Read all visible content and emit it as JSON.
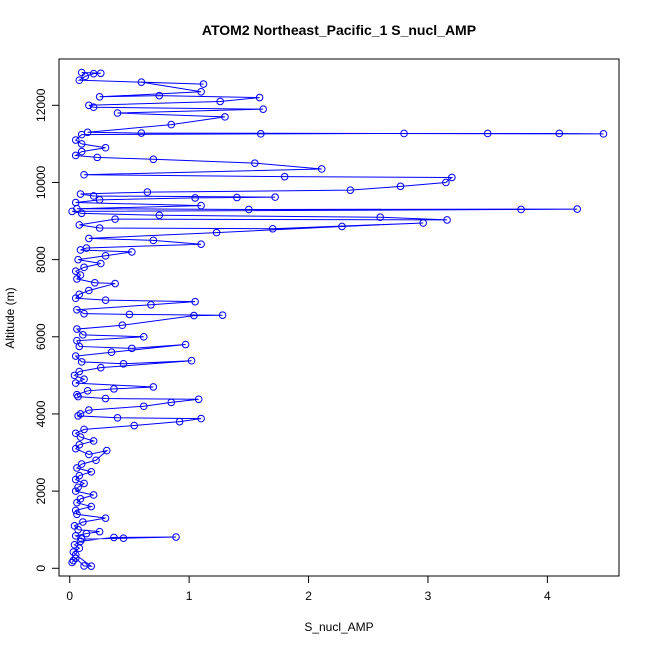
{
  "chart_data": {
    "type": "scatter",
    "title": "ATOM2 Northeast_Pacific_1 S_nucl_AMP",
    "xlabel": "S_nucl_AMP",
    "ylabel": "Altitude (m)",
    "xlim": [
      -0.09,
      4.6
    ],
    "ylim": [
      -200,
      13200
    ],
    "x_ticks": [
      0,
      1,
      2,
      3,
      4
    ],
    "y_ticks": [
      0,
      2000,
      4000,
      6000,
      8000,
      10000,
      12000
    ],
    "grid": false,
    "legend": "none",
    "colors": {
      "series": "#0000ff",
      "axis": "#000000",
      "background": "#ffffff"
    },
    "series": [
      {
        "marker": "open-circle",
        "connected": true,
        "points": [
          [
            0.02,
            150
          ],
          [
            0.03,
            200
          ],
          [
            0.05,
            260
          ],
          [
            0.12,
            60
          ],
          [
            0.18,
            55
          ],
          [
            0.05,
            350
          ],
          [
            0.03,
            420
          ],
          [
            0.08,
            520
          ],
          [
            0.04,
            610
          ],
          [
            0.09,
            700
          ],
          [
            0.37,
            800
          ],
          [
            0.89,
            810
          ],
          [
            0.45,
            780
          ],
          [
            0.1,
            760
          ],
          [
            0.05,
            840
          ],
          [
            0.14,
            900
          ],
          [
            0.25,
            950
          ],
          [
            0.07,
            1000
          ],
          [
            0.04,
            1100
          ],
          [
            0.11,
            1200
          ],
          [
            0.3,
            1300
          ],
          [
            0.06,
            1400
          ],
          [
            0.05,
            1500
          ],
          [
            0.18,
            1600
          ],
          [
            0.06,
            1700
          ],
          [
            0.09,
            1800
          ],
          [
            0.2,
            1900
          ],
          [
            0.05,
            2000
          ],
          [
            0.07,
            2100
          ],
          [
            0.12,
            2200
          ],
          [
            0.05,
            2300
          ],
          [
            0.08,
            2400
          ],
          [
            0.18,
            2500
          ],
          [
            0.06,
            2600
          ],
          [
            0.1,
            2700
          ],
          [
            0.22,
            2800
          ],
          [
            0.31,
            3050
          ],
          [
            0.16,
            2950
          ],
          [
            0.05,
            3100
          ],
          [
            0.08,
            3200
          ],
          [
            0.2,
            3300
          ],
          [
            0.09,
            3400
          ],
          [
            0.05,
            3500
          ],
          [
            0.12,
            3600
          ],
          [
            0.54,
            3700
          ],
          [
            0.92,
            3800
          ],
          [
            1.1,
            3880
          ],
          [
            0.4,
            3900
          ],
          [
            0.07,
            3950
          ],
          [
            0.09,
            4000
          ],
          [
            0.16,
            4100
          ],
          [
            0.62,
            4200
          ],
          [
            0.85,
            4300
          ],
          [
            1.08,
            4380
          ],
          [
            0.3,
            4400
          ],
          [
            0.07,
            4450
          ],
          [
            0.06,
            4500
          ],
          [
            0.15,
            4600
          ],
          [
            0.37,
            4650
          ],
          [
            0.7,
            4700
          ],
          [
            0.05,
            4800
          ],
          [
            0.12,
            4900
          ],
          [
            0.04,
            5000
          ],
          [
            0.08,
            5100
          ],
          [
            0.26,
            5200
          ],
          [
            1.02,
            5380
          ],
          [
            0.45,
            5300
          ],
          [
            0.1,
            5350
          ],
          [
            0.05,
            5500
          ],
          [
            0.35,
            5600
          ],
          [
            0.97,
            5800
          ],
          [
            0.52,
            5700
          ],
          [
            0.08,
            5750
          ],
          [
            0.06,
            5900
          ],
          [
            0.62,
            6000
          ],
          [
            0.11,
            6050
          ],
          [
            0.06,
            6200
          ],
          [
            0.44,
            6300
          ],
          [
            1.04,
            6550
          ],
          [
            1.28,
            6560
          ],
          [
            0.5,
            6580
          ],
          [
            0.12,
            6600
          ],
          [
            0.06,
            6700
          ],
          [
            0.68,
            6830
          ],
          [
            1.05,
            6910
          ],
          [
            0.3,
            6950
          ],
          [
            0.05,
            7000
          ],
          [
            0.08,
            7100
          ],
          [
            0.16,
            7200
          ],
          [
            0.38,
            7380
          ],
          [
            0.21,
            7400
          ],
          [
            0.06,
            7500
          ],
          [
            0.09,
            7600
          ],
          [
            0.05,
            7700
          ],
          [
            0.12,
            7800
          ],
          [
            0.26,
            7900
          ],
          [
            0.07,
            8000
          ],
          [
            0.3,
            8100
          ],
          [
            0.52,
            8200
          ],
          [
            0.09,
            8250
          ],
          [
            0.14,
            8300
          ],
          [
            1.1,
            8400
          ],
          [
            0.7,
            8500
          ],
          [
            0.16,
            8550
          ],
          [
            1.23,
            8700
          ],
          [
            2.28,
            8860
          ],
          [
            2.96,
            8950
          ],
          [
            1.7,
            8800
          ],
          [
            0.25,
            8820
          ],
          [
            0.08,
            8900
          ],
          [
            0.38,
            9050
          ],
          [
            3.16,
            9030
          ],
          [
            2.6,
            9100
          ],
          [
            0.75,
            9150
          ],
          [
            0.1,
            9200
          ],
          [
            0.02,
            9250
          ],
          [
            3.78,
            9300
          ],
          [
            4.25,
            9310
          ],
          [
            1.5,
            9300
          ],
          [
            0.06,
            9320
          ],
          [
            1.1,
            9400
          ],
          [
            0.05,
            9480
          ],
          [
            0.25,
            9550
          ],
          [
            1.05,
            9600
          ],
          [
            1.4,
            9610
          ],
          [
            1.72,
            9620
          ],
          [
            0.2,
            9650
          ],
          [
            0.09,
            9700
          ],
          [
            0.65,
            9750
          ],
          [
            2.35,
            9800
          ],
          [
            2.77,
            9900
          ],
          [
            3.15,
            10000
          ],
          [
            3.2,
            10130
          ],
          [
            1.8,
            10150
          ],
          [
            0.12,
            10200
          ],
          [
            2.11,
            10350
          ],
          [
            1.55,
            10500
          ],
          [
            0.7,
            10600
          ],
          [
            0.23,
            10650
          ],
          [
            0.05,
            10700
          ],
          [
            0.1,
            10800
          ],
          [
            0.3,
            10900
          ],
          [
            0.1,
            11000
          ],
          [
            0.05,
            11100
          ],
          [
            0.1,
            11240
          ],
          [
            1.6,
            11260
          ],
          [
            2.8,
            11270
          ],
          [
            3.5,
            11270
          ],
          [
            4.1,
            11270
          ],
          [
            4.47,
            11260
          ],
          [
            0.6,
            11280
          ],
          [
            0.15,
            11300
          ],
          [
            0.85,
            11500
          ],
          [
            1.3,
            11700
          ],
          [
            0.4,
            11800
          ],
          [
            1.62,
            11900
          ],
          [
            0.2,
            11950
          ],
          [
            0.16,
            12000
          ],
          [
            1.26,
            12100
          ],
          [
            1.59,
            12200
          ],
          [
            0.75,
            12250
          ],
          [
            0.25,
            12220
          ],
          [
            1.1,
            12350
          ],
          [
            0.6,
            12600
          ],
          [
            1.12,
            12550
          ],
          [
            0.08,
            12650
          ],
          [
            0.13,
            12750
          ],
          [
            0.2,
            12820
          ],
          [
            0.26,
            12830
          ],
          [
            0.1,
            12850
          ]
        ]
      }
    ]
  }
}
